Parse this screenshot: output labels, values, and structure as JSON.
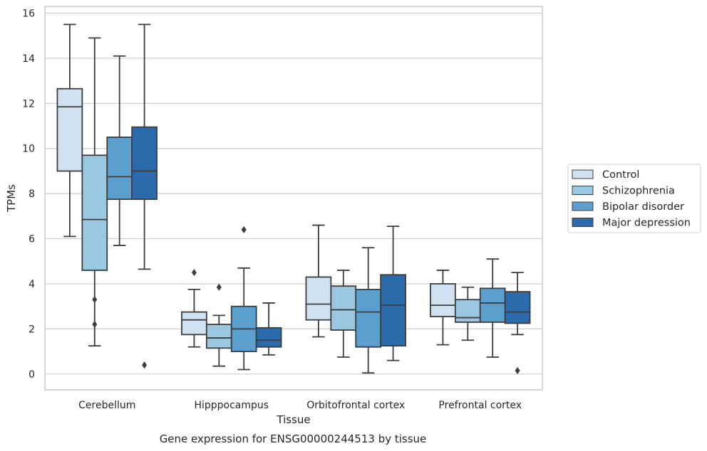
{
  "chart_data": {
    "type": "box",
    "title": "",
    "caption": "Gene expression for ENSG00000244513 by tissue",
    "xlabel": "Tissue",
    "ylabel": "TPMs",
    "ylim": [
      -0.7,
      16.3
    ],
    "yticks": [
      0,
      2,
      4,
      6,
      8,
      10,
      12,
      14,
      16
    ],
    "grid": true,
    "legend_position": "right",
    "categories": [
      "Cerebellum",
      "Hipppocampus",
      "Orbitofrontal cortex",
      "Prefrontal cortex"
    ],
    "series": [
      {
        "name": "Control",
        "color": "#d0e1f2",
        "boxes": [
          {
            "whislo": 6.1,
            "q1": 9.0,
            "med": 11.85,
            "q3": 12.65,
            "whishi": 15.5,
            "fliers": []
          },
          {
            "whislo": 1.2,
            "q1": 1.75,
            "med": 2.4,
            "q3": 2.75,
            "whishi": 3.75,
            "fliers": [
              4.5
            ]
          },
          {
            "whislo": 1.65,
            "q1": 2.4,
            "med": 3.1,
            "q3": 4.3,
            "whishi": 6.6,
            "fliers": []
          },
          {
            "whislo": 1.3,
            "q1": 2.55,
            "med": 3.05,
            "q3": 4.0,
            "whishi": 4.6,
            "fliers": []
          }
        ]
      },
      {
        "name": "Schizophrenia",
        "color": "#9ac8e0",
        "boxes": [
          {
            "whislo": 1.25,
            "q1": 4.6,
            "med": 6.85,
            "q3": 9.7,
            "whishi": 14.9,
            "fliers": [
              3.3,
              2.2
            ]
          },
          {
            "whislo": 0.35,
            "q1": 1.15,
            "med": 1.6,
            "q3": 2.2,
            "whishi": 2.6,
            "fliers": [
              3.85
            ]
          },
          {
            "whislo": 0.75,
            "q1": 1.95,
            "med": 2.85,
            "q3": 3.9,
            "whishi": 4.6,
            "fliers": []
          },
          {
            "whislo": 1.5,
            "q1": 2.3,
            "med": 2.5,
            "q3": 3.3,
            "whishi": 3.85,
            "fliers": []
          }
        ]
      },
      {
        "name": "Bipolar disorder",
        "color": "#5b9fcf",
        "boxes": [
          {
            "whislo": 5.7,
            "q1": 7.75,
            "med": 8.75,
            "q3": 10.5,
            "whishi": 14.1,
            "fliers": []
          },
          {
            "whislo": 0.2,
            "q1": 1.0,
            "med": 2.0,
            "q3": 3.0,
            "whishi": 4.7,
            "fliers": [
              6.4
            ]
          },
          {
            "whislo": 0.05,
            "q1": 1.2,
            "med": 2.75,
            "q3": 3.75,
            "whishi": 5.6,
            "fliers": []
          },
          {
            "whislo": 0.75,
            "q1": 2.3,
            "med": 3.15,
            "q3": 3.8,
            "whishi": 5.1,
            "fliers": []
          }
        ]
      },
      {
        "name": "Major depression",
        "color": "#2b6aab",
        "boxes": [
          {
            "whislo": 4.65,
            "q1": 7.75,
            "med": 9.0,
            "q3": 10.95,
            "whishi": 15.5,
            "fliers": [
              0.4
            ]
          },
          {
            "whislo": 0.85,
            "q1": 1.2,
            "med": 1.5,
            "q3": 2.05,
            "whishi": 3.15,
            "fliers": []
          },
          {
            "whislo": 0.6,
            "q1": 1.25,
            "med": 3.05,
            "q3": 4.4,
            "whishi": 6.55,
            "fliers": []
          },
          {
            "whislo": 1.75,
            "q1": 2.25,
            "med": 2.75,
            "q3": 3.65,
            "whishi": 4.5,
            "fliers": [
              0.15
            ]
          }
        ]
      }
    ]
  }
}
